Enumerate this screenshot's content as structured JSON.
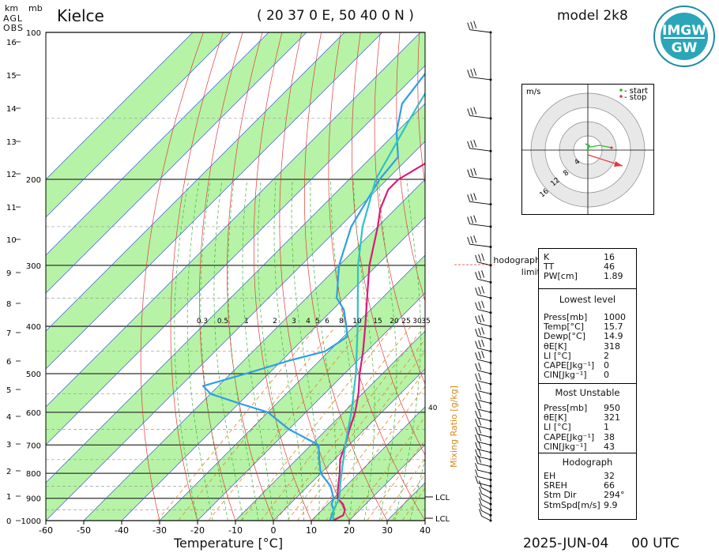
{
  "header": {
    "station": "Kielce",
    "coords": "( 20 37 0 E, 50 40 0 N )",
    "model": "model 2k8",
    "date": "2025-JUN-04",
    "time": "00 UTC"
  },
  "logo": {
    "top_text": "IMGW",
    "bottom_text": "GW"
  },
  "axes": {
    "km_label": "km",
    "mb_label": "mb",
    "agl_label": "AGL",
    "obs_label": "OBS",
    "x_title": "Temperature [°C]",
    "x_ticks": [
      "-60",
      "-50",
      "-40",
      "-30",
      "-20",
      "-10",
      "0",
      "10",
      "20",
      "30",
      "40"
    ],
    "p_ticks": [
      "100",
      "200",
      "300",
      "400",
      "500",
      "600",
      "700",
      "800",
      "900",
      "1000"
    ],
    "km_ticks": [
      "0",
      "1",
      "2",
      "3",
      "4",
      "5",
      "6",
      "7",
      "8",
      "9",
      "10",
      "11",
      "12",
      "13",
      "14",
      "15",
      "16"
    ],
    "mixing_ratio_title": "Mixing Ratio [g/kg]",
    "mixing_ratio_ticks": [
      "0.3",
      "0.5",
      "1",
      "2",
      "3",
      "4",
      "5",
      "6",
      "8",
      "10",
      "15",
      "20",
      "25",
      "30",
      "35"
    ],
    "theta_e_tick": "40",
    "lcl_labels": [
      "LCL",
      "LCL"
    ]
  },
  "hodograph": {
    "unit": "m/s",
    "legend_start": "- start",
    "legend_stop": "- stop",
    "ring_labels": [
      "4",
      "8",
      "12",
      "16"
    ],
    "limit_label_1": "hodograph",
    "limit_label_2": "limit"
  },
  "indices": {
    "top": [
      {
        "k": "K",
        "v": "16"
      },
      {
        "k": "TT",
        "v": "46"
      },
      {
        "k": "PW[cm]",
        "v": "1.89"
      }
    ],
    "lowest_title": "Lowest level",
    "lowest": [
      {
        "k": "Press[mb]",
        "v": "1000"
      },
      {
        "k": "Temp[°C]",
        "v": "15.7"
      },
      {
        "k": "Dewp[°C]",
        "v": "14.9"
      },
      {
        "k": "θE[K]",
        "v": "318"
      },
      {
        "k": "LI [°C]",
        "v": "2"
      },
      {
        "k": "CAPE[Jkg⁻¹]",
        "v": "0"
      },
      {
        "k": "CIN[Jkg⁻¹]",
        "v": "0"
      }
    ],
    "mu_title": "Most Unstable",
    "mu": [
      {
        "k": "Press[mb]",
        "v": "950"
      },
      {
        "k": "θE[K]",
        "v": "321"
      },
      {
        "k": "LI [°C]",
        "v": "1"
      },
      {
        "k": "CAPE[Jkg⁻¹]",
        "v": "38"
      },
      {
        "k": "CIN[Jkg⁻¹]",
        "v": "43"
      }
    ],
    "hodo_title": "Hodograph",
    "hodo": [
      {
        "k": "EH",
        "v": "32"
      },
      {
        "k": "SREH",
        "v": "66"
      },
      {
        "k": "Stm Dir",
        "v": "294°"
      },
      {
        "k": "StmSpd[m/s]",
        "v": "9.9"
      }
    ]
  },
  "colors": {
    "temperature": "#d81b7a",
    "dewpoint": "#2f9ee6",
    "parcel": "#2fc2c6",
    "dry_adiabat": "#e23a3a",
    "moist_adiabat": "#3bb33b",
    "mixing_ratio": "#e08a1e",
    "isotherm_band": "#b6f3a6"
  },
  "chart_data": {
    "type": "line",
    "title": "",
    "xlabel": "Temperature [°C]",
    "ylabel": "mb",
    "xlim": [
      -60,
      40
    ],
    "ylim": [
      1000,
      100
    ],
    "series": [
      {
        "name": "",
        "role": "temperature",
        "points": [
          [
            1000,
            15.7
          ],
          [
            975,
            17
          ],
          [
            950,
            16
          ],
          [
            925,
            14
          ],
          [
            900,
            11
          ],
          [
            850,
            8
          ],
          [
            800,
            5
          ],
          [
            750,
            1.5
          ],
          [
            700,
            -1
          ],
          [
            650,
            -4
          ],
          [
            600,
            -7
          ],
          [
            550,
            -11
          ],
          [
            500,
            -16
          ],
          [
            450,
            -21
          ],
          [
            400,
            -27
          ],
          [
            350,
            -34
          ],
          [
            300,
            -42
          ],
          [
            250,
            -50
          ],
          [
            230,
            -54
          ],
          [
            210,
            -57
          ],
          [
            200,
            -57
          ],
          [
            180,
            -53
          ],
          [
            160,
            -50
          ],
          [
            140,
            -48
          ],
          [
            120,
            -46
          ],
          [
            100,
            -45
          ]
        ]
      },
      {
        "name": "",
        "role": "dewpoint",
        "points": [
          [
            1000,
            14.9
          ],
          [
            975,
            14
          ],
          [
            950,
            13
          ],
          [
            925,
            11
          ],
          [
            900,
            10
          ],
          [
            850,
            6
          ],
          [
            800,
            0
          ],
          [
            750,
            -4
          ],
          [
            700,
            -8
          ],
          [
            650,
            -20
          ],
          [
            600,
            -30
          ],
          [
            575,
            -40
          ],
          [
            550,
            -50
          ],
          [
            530,
            -54
          ],
          [
            500,
            -46
          ],
          [
            470,
            -38
          ],
          [
            450,
            -31
          ],
          [
            420,
            -29
          ],
          [
            400,
            -32
          ],
          [
            370,
            -37
          ],
          [
            350,
            -42
          ],
          [
            300,
            -50
          ],
          [
            250,
            -57
          ],
          [
            200,
            -62
          ],
          [
            180,
            -63
          ],
          [
            160,
            -70
          ],
          [
            140,
            -76
          ],
          [
            120,
            -78
          ],
          [
            100,
            -80
          ]
        ]
      },
      {
        "name": "",
        "role": "parcel",
        "points": [
          [
            1000,
            15.7
          ],
          [
            950,
            13
          ],
          [
            900,
            11.5
          ],
          [
            850,
            8.5
          ],
          [
            800,
            5.5
          ],
          [
            700,
            -1
          ],
          [
            600,
            -8
          ],
          [
            500,
            -17
          ],
          [
            400,
            -29
          ],
          [
            300,
            -45
          ],
          [
            250,
            -54
          ],
          [
            200,
            -63
          ],
          [
            150,
            -70
          ],
          [
            120,
            -75
          ],
          [
            100,
            -79
          ]
        ]
      }
    ],
    "wind_profile_pressures": [
      1000,
      975,
      950,
      925,
      900,
      875,
      850,
      825,
      800,
      775,
      750,
      725,
      700,
      675,
      650,
      625,
      600,
      575,
      550,
      525,
      500,
      475,
      450,
      425,
      400,
      375,
      350,
      325,
      300,
      275,
      250,
      225,
      200,
      175,
      150,
      125,
      100
    ]
  }
}
